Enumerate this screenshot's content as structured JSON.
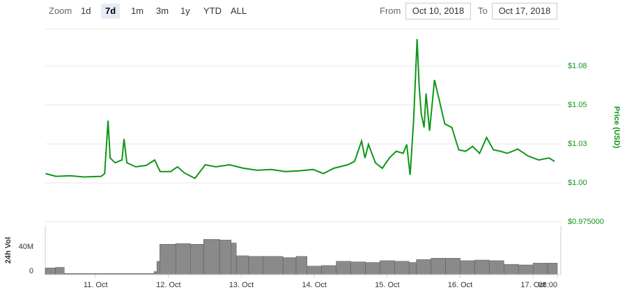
{
  "controls": {
    "zoom_label": "Zoom",
    "buttons": [
      "1d",
      "7d",
      "1m",
      "3m",
      "1y",
      "YTD",
      "ALL"
    ],
    "active": 1,
    "from_label": "From",
    "from_value": "Oct 10, 2018",
    "to_label": "To",
    "to_value": "Oct 17, 2018"
  },
  "chart_data": [
    {
      "type": "line",
      "y_label": "Price (USD)",
      "color": "#109618",
      "xlim": [
        10.31,
        17.333
      ],
      "ylim": [
        0.975,
        1.096
      ],
      "yticks": [
        {
          "value": 0.975,
          "label": "$0.975000"
        },
        {
          "value": 1.0,
          "label": "$1.00"
        },
        {
          "value": 1.025,
          "label": "$1.03"
        },
        {
          "value": 1.05,
          "label": "$1.05"
        },
        {
          "value": 1.075,
          "label": "$1.08"
        }
      ],
      "grid": true,
      "x": [
        10.314,
        10.457,
        10.648,
        10.838,
        11.076,
        11.124,
        11.171,
        11.2,
        11.267,
        11.362,
        11.39,
        11.429,
        11.552,
        11.695,
        11.81,
        11.886,
        12.029,
        12.124,
        12.219,
        12.362,
        12.505,
        12.648,
        12.838,
        13.029,
        13.219,
        13.41,
        13.6,
        13.79,
        13.981,
        14.124,
        14.267,
        14.457,
        14.552,
        14.648,
        14.695,
        14.743,
        14.838,
        14.933,
        15.029,
        15.124,
        15.219,
        15.267,
        15.314,
        15.362,
        15.41,
        15.438,
        15.467,
        15.505,
        15.533,
        15.581,
        15.648,
        15.714,
        15.79,
        15.886,
        15.981,
        16.076,
        16.171,
        16.267,
        16.362,
        16.457,
        16.552,
        16.648,
        16.79,
        16.933,
        17.076,
        17.219,
        17.295
      ],
      "values": [
        1.006,
        1.0042,
        1.0046,
        1.0038,
        1.0042,
        1.006,
        1.04,
        1.016,
        1.0129,
        1.0147,
        1.0282,
        1.0129,
        1.0103,
        1.0112,
        1.0147,
        1.0073,
        1.0073,
        1.0103,
        1.0064,
        1.0029,
        1.0116,
        1.0103,
        1.0116,
        1.0094,
        1.0081,
        1.0086,
        1.0073,
        1.0077,
        1.0086,
        1.006,
        1.0094,
        1.0116,
        1.0138,
        1.0269,
        1.016,
        1.0247,
        1.0129,
        1.0094,
        1.016,
        1.0203,
        1.019,
        1.0247,
        1.0051,
        1.04,
        1.0923,
        1.0618,
        1.0443,
        1.0356,
        1.0574,
        1.0334,
        1.0661,
        1.053,
        1.0378,
        1.0356,
        1.0212,
        1.0203,
        1.0234,
        1.019,
        1.0291,
        1.0212,
        1.0203,
        1.019,
        1.0217,
        1.0173,
        1.0147,
        1.016,
        1.0138
      ]
    },
    {
      "type": "bar",
      "y_label": "24h Vol",
      "color": "#8a8a8a",
      "xlim": [
        10.31,
        17.333
      ],
      "xticks": [
        {
          "value": 11,
          "label": "11. Oct"
        },
        {
          "value": 12,
          "label": "12. Oct"
        },
        {
          "value": 13,
          "label": "13. Oct"
        },
        {
          "value": 14,
          "label": "14. Oct"
        },
        {
          "value": 15,
          "label": "15. Oct"
        },
        {
          "value": 16,
          "label": "16. Oct"
        },
        {
          "value": 17,
          "label": "17. Oct"
        },
        {
          "value": 17.333,
          "label": "08:00"
        }
      ],
      "ylim": [
        0,
        80
      ],
      "yticks": [
        0,
        {
          "value": 40,
          "label": "40M"
        }
      ],
      "x": [
        10.31,
        10.45,
        10.57,
        10.8,
        11.0,
        11.2,
        11.4,
        11.6,
        11.8,
        11.84,
        11.88,
        12.1,
        12.3,
        12.48,
        12.7,
        12.86,
        12.93,
        13.1,
        13.3,
        13.57,
        13.75,
        13.9,
        14.1,
        14.3,
        14.5,
        14.7,
        14.9,
        15.1,
        15.3,
        15.4,
        15.6,
        15.8,
        16.0,
        16.2,
        16.4,
        16.6,
        16.8,
        17.0,
        17.2
      ],
      "values": [
        11,
        12,
        2,
        2,
        2,
        2,
        2,
        2,
        5,
        22,
        50,
        51,
        50,
        58,
        57,
        52,
        31,
        30,
        30,
        28,
        30,
        14,
        15,
        22,
        21,
        20,
        23,
        22,
        20,
        25,
        27,
        27,
        23,
        24,
        23,
        17,
        16,
        19,
        19
      ]
    }
  ]
}
